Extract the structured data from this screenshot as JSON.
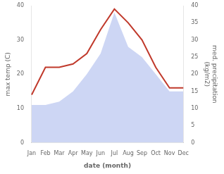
{
  "chart_data": {
    "type": "line",
    "categories": [
      "Jan",
      "Feb",
      "Mar",
      "Apr",
      "May",
      "Jun",
      "Jul",
      "Aug",
      "Sep",
      "Oct",
      "Nov",
      "Dec"
    ],
    "series": [
      {
        "type": "area",
        "color": "#b8c4f0",
        "axis": "y2",
        "values": [
          11,
          11,
          12,
          15,
          20,
          26,
          38,
          28,
          25,
          20,
          15,
          15
        ]
      },
      {
        "type": "line",
        "color": "#c0392b",
        "values": [
          14,
          22,
          22,
          23,
          26,
          33,
          39,
          35,
          30,
          22,
          16,
          16
        ]
      }
    ],
    "xlabel": "date (month)",
    "ylabel": "max temp (C)",
    "y2label": "med. precipitation\n(kg/m2)",
    "ylim": [
      0,
      40
    ],
    "yticks": [
      0,
      10,
      20,
      30,
      40
    ],
    "y2lim": [
      0,
      40
    ],
    "y2ticks": [
      0,
      5,
      10,
      15,
      20,
      25,
      30,
      35,
      40
    ],
    "grid": false
  }
}
